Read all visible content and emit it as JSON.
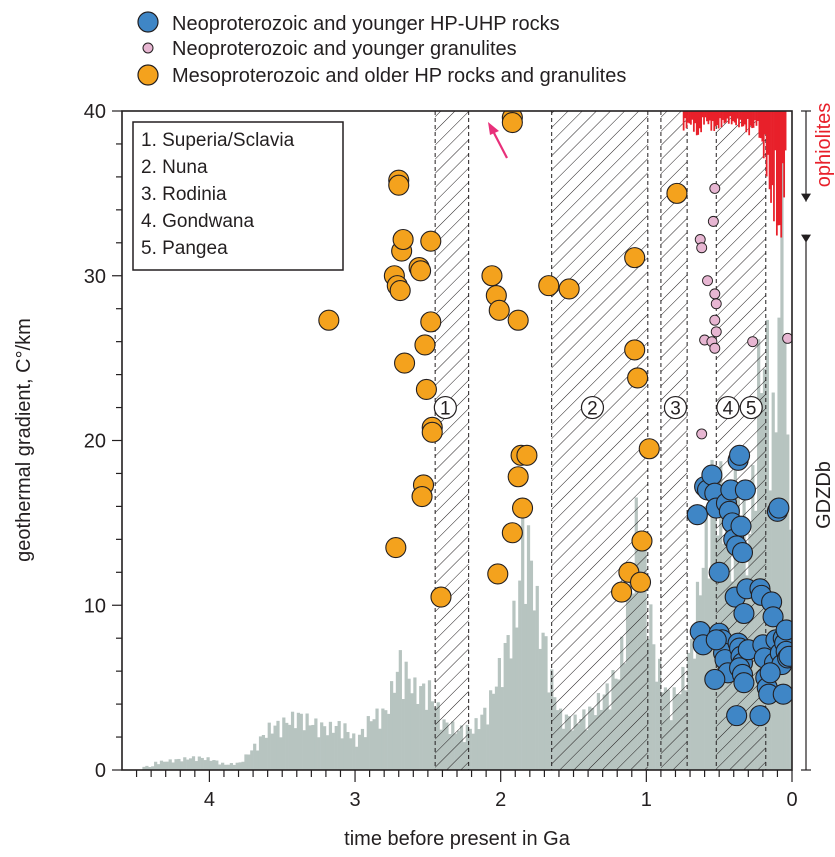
{
  "chart_data": {
    "type": "scatter",
    "xlabel": "time before present in Ga",
    "ylabel": "geothermal gradient, C°/km",
    "xlim": [
      4.6,
      0
    ],
    "ylim": [
      0,
      40
    ],
    "x_ticks": [
      "4",
      "3",
      "2",
      "1",
      "0"
    ],
    "x_tick_values": [
      4,
      3,
      2,
      1,
      0
    ],
    "y_ticks": [
      "0",
      "10",
      "20",
      "30",
      "40"
    ],
    "y_tick_values": [
      0,
      10,
      20,
      30,
      40
    ],
    "legend_position": "top",
    "series": [
      {
        "name": "Neoproterozoic and younger HP-UHP rocks",
        "marker": "large-circle",
        "color": "#3f86c6",
        "points": [
          [
            0.65,
            15.5
          ],
          [
            0.63,
            8.4
          ],
          [
            0.61,
            7.6
          ],
          [
            0.6,
            17.2
          ],
          [
            0.58,
            17.0
          ],
          [
            0.55,
            17.9
          ],
          [
            0.53,
            16.8
          ],
          [
            0.52,
            15.9
          ],
          [
            0.5,
            12.0
          ],
          [
            0.5,
            8.3
          ],
          [
            0.48,
            7.9
          ],
          [
            0.47,
            7.1
          ],
          [
            0.46,
            6.7
          ],
          [
            0.44,
            5.9
          ],
          [
            0.45,
            16.2
          ],
          [
            0.43,
            15.7
          ],
          [
            0.42,
            17.0
          ],
          [
            0.41,
            15.0
          ],
          [
            0.4,
            14.0
          ],
          [
            0.39,
            10.5
          ],
          [
            0.38,
            13.6
          ],
          [
            0.37,
            18.8
          ],
          [
            0.36,
            19.1
          ],
          [
            0.35,
            14.8
          ],
          [
            0.34,
            13.2
          ],
          [
            0.33,
            9.5
          ],
          [
            0.37,
            7.7
          ],
          [
            0.36,
            7.4
          ],
          [
            0.35,
            6.9
          ],
          [
            0.34,
            6.5
          ],
          [
            0.36,
            6.2
          ],
          [
            0.34,
            5.8
          ],
          [
            0.33,
            5.3
          ],
          [
            0.32,
            17.0
          ],
          [
            0.31,
            11.0
          ],
          [
            0.3,
            7.3
          ],
          [
            0.38,
            3.3
          ],
          [
            0.53,
            5.5
          ],
          [
            0.52,
            7.9
          ],
          [
            0.22,
            11.0
          ],
          [
            0.21,
            10.6
          ],
          [
            0.2,
            7.6
          ],
          [
            0.19,
            6.8
          ],
          [
            0.18,
            5.6
          ],
          [
            0.17,
            5.0
          ],
          [
            0.16,
            4.6
          ],
          [
            0.22,
            3.3
          ],
          [
            0.14,
            10.2
          ],
          [
            0.13,
            9.3
          ],
          [
            0.12,
            6.5
          ],
          [
            0.11,
            7.9
          ],
          [
            0.1,
            15.7
          ],
          [
            0.09,
            15.9
          ],
          [
            0.08,
            7.1
          ],
          [
            0.07,
            6.4
          ],
          [
            0.06,
            8.0
          ],
          [
            0.05,
            7.7
          ],
          [
            0.04,
            7.2
          ],
          [
            0.03,
            6.8
          ],
          [
            0.02,
            6.9
          ],
          [
            0.06,
            4.6
          ],
          [
            0.04,
            8.5
          ],
          [
            0.15,
            5.9
          ]
        ]
      },
      {
        "name": "Neoproterozoic and younger granulites",
        "marker": "small-circle",
        "color": "#e7b6d2",
        "points": [
          [
            0.62,
            20.4
          ],
          [
            0.63,
            32.2
          ],
          [
            0.62,
            31.7
          ],
          [
            0.58,
            29.7
          ],
          [
            0.6,
            26.1
          ],
          [
            0.55,
            26.0
          ],
          [
            0.53,
            35.3
          ],
          [
            0.54,
            33.3
          ],
          [
            0.53,
            28.9
          ],
          [
            0.52,
            28.3
          ],
          [
            0.53,
            27.3
          ],
          [
            0.52,
            26.6
          ],
          [
            0.53,
            25.6
          ],
          [
            0.27,
            26.0
          ],
          [
            0.03,
            26.2
          ]
        ]
      },
      {
        "name": "Mesoproterozoic and older HP rocks and granulites",
        "marker": "large-circle",
        "color": "#f4a21d",
        "points": [
          [
            3.18,
            27.3
          ],
          [
            2.72,
            13.5
          ],
          [
            2.7,
            35.8
          ],
          [
            2.7,
            35.5
          ],
          [
            2.73,
            30.0
          ],
          [
            2.71,
            29.4
          ],
          [
            2.68,
            31.5
          ],
          [
            2.67,
            32.2
          ],
          [
            2.69,
            29.1
          ],
          [
            2.66,
            24.7
          ],
          [
            2.56,
            30.5
          ],
          [
            2.55,
            30.3
          ],
          [
            2.52,
            25.8
          ],
          [
            2.51,
            23.1
          ],
          [
            2.48,
            32.1
          ],
          [
            2.48,
            27.2
          ],
          [
            2.47,
            20.8
          ],
          [
            2.47,
            20.5
          ],
          [
            2.53,
            17.3
          ],
          [
            2.54,
            16.6
          ],
          [
            2.41,
            10.5
          ],
          [
            2.06,
            30.0
          ],
          [
            2.03,
            28.8
          ],
          [
            2.01,
            27.9
          ],
          [
            2.02,
            11.9
          ],
          [
            1.92,
            39.6
          ],
          [
            1.92,
            39.3
          ],
          [
            1.88,
            27.3
          ],
          [
            1.92,
            14.4
          ],
          [
            1.88,
            17.8
          ],
          [
            1.86,
            19.1
          ],
          [
            1.85,
            15.9
          ],
          [
            1.82,
            19.1
          ],
          [
            1.67,
            29.4
          ],
          [
            1.53,
            29.2
          ],
          [
            1.08,
            31.1
          ],
          [
            1.08,
            25.5
          ],
          [
            1.06,
            23.8
          ],
          [
            1.17,
            10.8
          ],
          [
            1.12,
            12.0
          ],
          [
            1.03,
            13.9
          ],
          [
            1.04,
            11.4
          ],
          [
            0.98,
            19.5
          ],
          [
            0.79,
            35.0
          ]
        ]
      }
    ],
    "zircon_histogram": {
      "color": "#b7c4c0",
      "values_ga_percent_of_axis": [
        [
          4.4,
          0.4
        ],
        [
          4.3,
          0.5
        ],
        [
          4.2,
          0.6
        ],
        [
          4.1,
          0.7
        ],
        [
          4.0,
          0.6
        ],
        [
          3.9,
          0.3
        ],
        [
          3.8,
          0.4
        ],
        [
          3.7,
          1.3
        ],
        [
          3.6,
          2.3
        ],
        [
          3.5,
          2.6
        ],
        [
          3.4,
          3.0
        ],
        [
          3.3,
          2.6
        ],
        [
          3.2,
          2.3
        ],
        [
          3.1,
          2.5
        ],
        [
          3.0,
          1.6
        ],
        [
          2.9,
          2.9
        ],
        [
          2.8,
          3.2
        ],
        [
          2.7,
          6.0
        ],
        [
          2.6,
          4.5
        ],
        [
          2.5,
          4.4
        ],
        [
          2.4,
          2.6
        ],
        [
          2.3,
          2.2
        ],
        [
          2.2,
          2.3
        ],
        [
          2.1,
          3.4
        ],
        [
          2.0,
          6.0
        ],
        [
          1.9,
          8.8
        ],
        [
          1.85,
          13.5
        ],
        [
          1.8,
          11.5
        ],
        [
          1.75,
          8.3
        ],
        [
          1.7,
          6.8
        ],
        [
          1.65,
          4.5
        ],
        [
          1.6,
          3.0
        ],
        [
          1.5,
          2.7
        ],
        [
          1.4,
          3.2
        ],
        [
          1.3,
          4.1
        ],
        [
          1.2,
          5.5
        ],
        [
          1.15,
          8.0
        ],
        [
          1.1,
          12.5
        ],
        [
          1.05,
          14.5
        ],
        [
          1.0,
          10.0
        ],
        [
          0.95,
          6.0
        ],
        [
          0.9,
          5.0
        ],
        [
          0.85,
          3.8
        ],
        [
          0.8,
          4.3
        ],
        [
          0.75,
          5.2
        ],
        [
          0.7,
          6.8
        ],
        [
          0.65,
          9.8
        ],
        [
          0.6,
          13.0
        ],
        [
          0.55,
          16.5
        ],
        [
          0.5,
          15.0
        ],
        [
          0.45,
          13.5
        ],
        [
          0.4,
          16.0
        ],
        [
          0.35,
          14.5
        ],
        [
          0.3,
          12.5
        ],
        [
          0.25,
          20.5
        ],
        [
          0.2,
          23.5
        ],
        [
          0.15,
          20.0
        ],
        [
          0.12,
          18.0
        ],
        [
          0.1,
          30.5
        ],
        [
          0.07,
          32.0
        ],
        [
          0.05,
          22.0
        ],
        [
          0.02,
          12.0
        ]
      ]
    },
    "ophiolite_histogram": {
      "color": "#e8202a",
      "values": [
        [
          0.75,
          0.8
        ],
        [
          0.7,
          0.6
        ],
        [
          0.65,
          1.2
        ],
        [
          0.6,
          0.4
        ],
        [
          0.55,
          0.9
        ],
        [
          0.45,
          0.5
        ],
        [
          0.35,
          0.7
        ],
        [
          0.3,
          1.0
        ],
        [
          0.25,
          0.6
        ],
        [
          0.2,
          2.0
        ],
        [
          0.17,
          3.0
        ],
        [
          0.14,
          5.0
        ],
        [
          0.12,
          4.0
        ],
        [
          0.1,
          6.5
        ],
        [
          0.08,
          5.5
        ],
        [
          0.06,
          3.5
        ],
        [
          0.04,
          2.5
        ]
      ]
    },
    "supercontinent_bands": [
      {
        "label": "1",
        "from": 2.45,
        "to": 2.22
      },
      {
        "label": "2",
        "from": 1.65,
        "to": 0.99
      },
      {
        "label": "3",
        "from": 0.9,
        "to": 0.72
      },
      {
        "label": "4",
        "from": 0.52,
        "to": 0.18
      },
      {
        "label": "5",
        "from": 0.35,
        "to": 0.18
      }
    ],
    "band_labels": [
      {
        "text": "1",
        "x": 2.38
      },
      {
        "text": "2",
        "x": 1.37
      },
      {
        "text": "3",
        "x": 0.8
      },
      {
        "text": "4",
        "x": 0.44
      },
      {
        "text": "5",
        "x": 0.28
      }
    ],
    "inset_legend": [
      "1. Superia/Sclavia",
      "2. Nuna",
      "3. Rodinia",
      "4. Gondwana",
      "5. Pangea"
    ],
    "right_labels": {
      "ophiolites": "ophiolites",
      "gdzdb": "GDZDb"
    },
    "ophiolite_range": [
      34.5,
      40
    ],
    "gdzdb_range": [
      0,
      32.5
    ],
    "arrow_color": "#e8307a"
  }
}
